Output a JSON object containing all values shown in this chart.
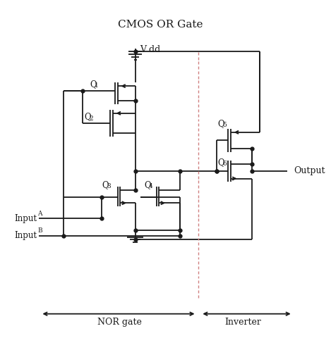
{
  "title": "CMOS OR Gate",
  "title_fontsize": 11,
  "bg_color": "#ffffff",
  "line_color": "#1a1a1a",
  "figsize": [
    4.69,
    4.8
  ],
  "dpi": 100,
  "labels": {
    "vdd": "V dd",
    "inputA": "Input",
    "inputA_sub": "A",
    "inputB": "Input",
    "inputB_sub": "B",
    "output": "Output",
    "nor": "NOR gate",
    "inv": "Inverter"
  },
  "dotted_line_color": "#d08080"
}
